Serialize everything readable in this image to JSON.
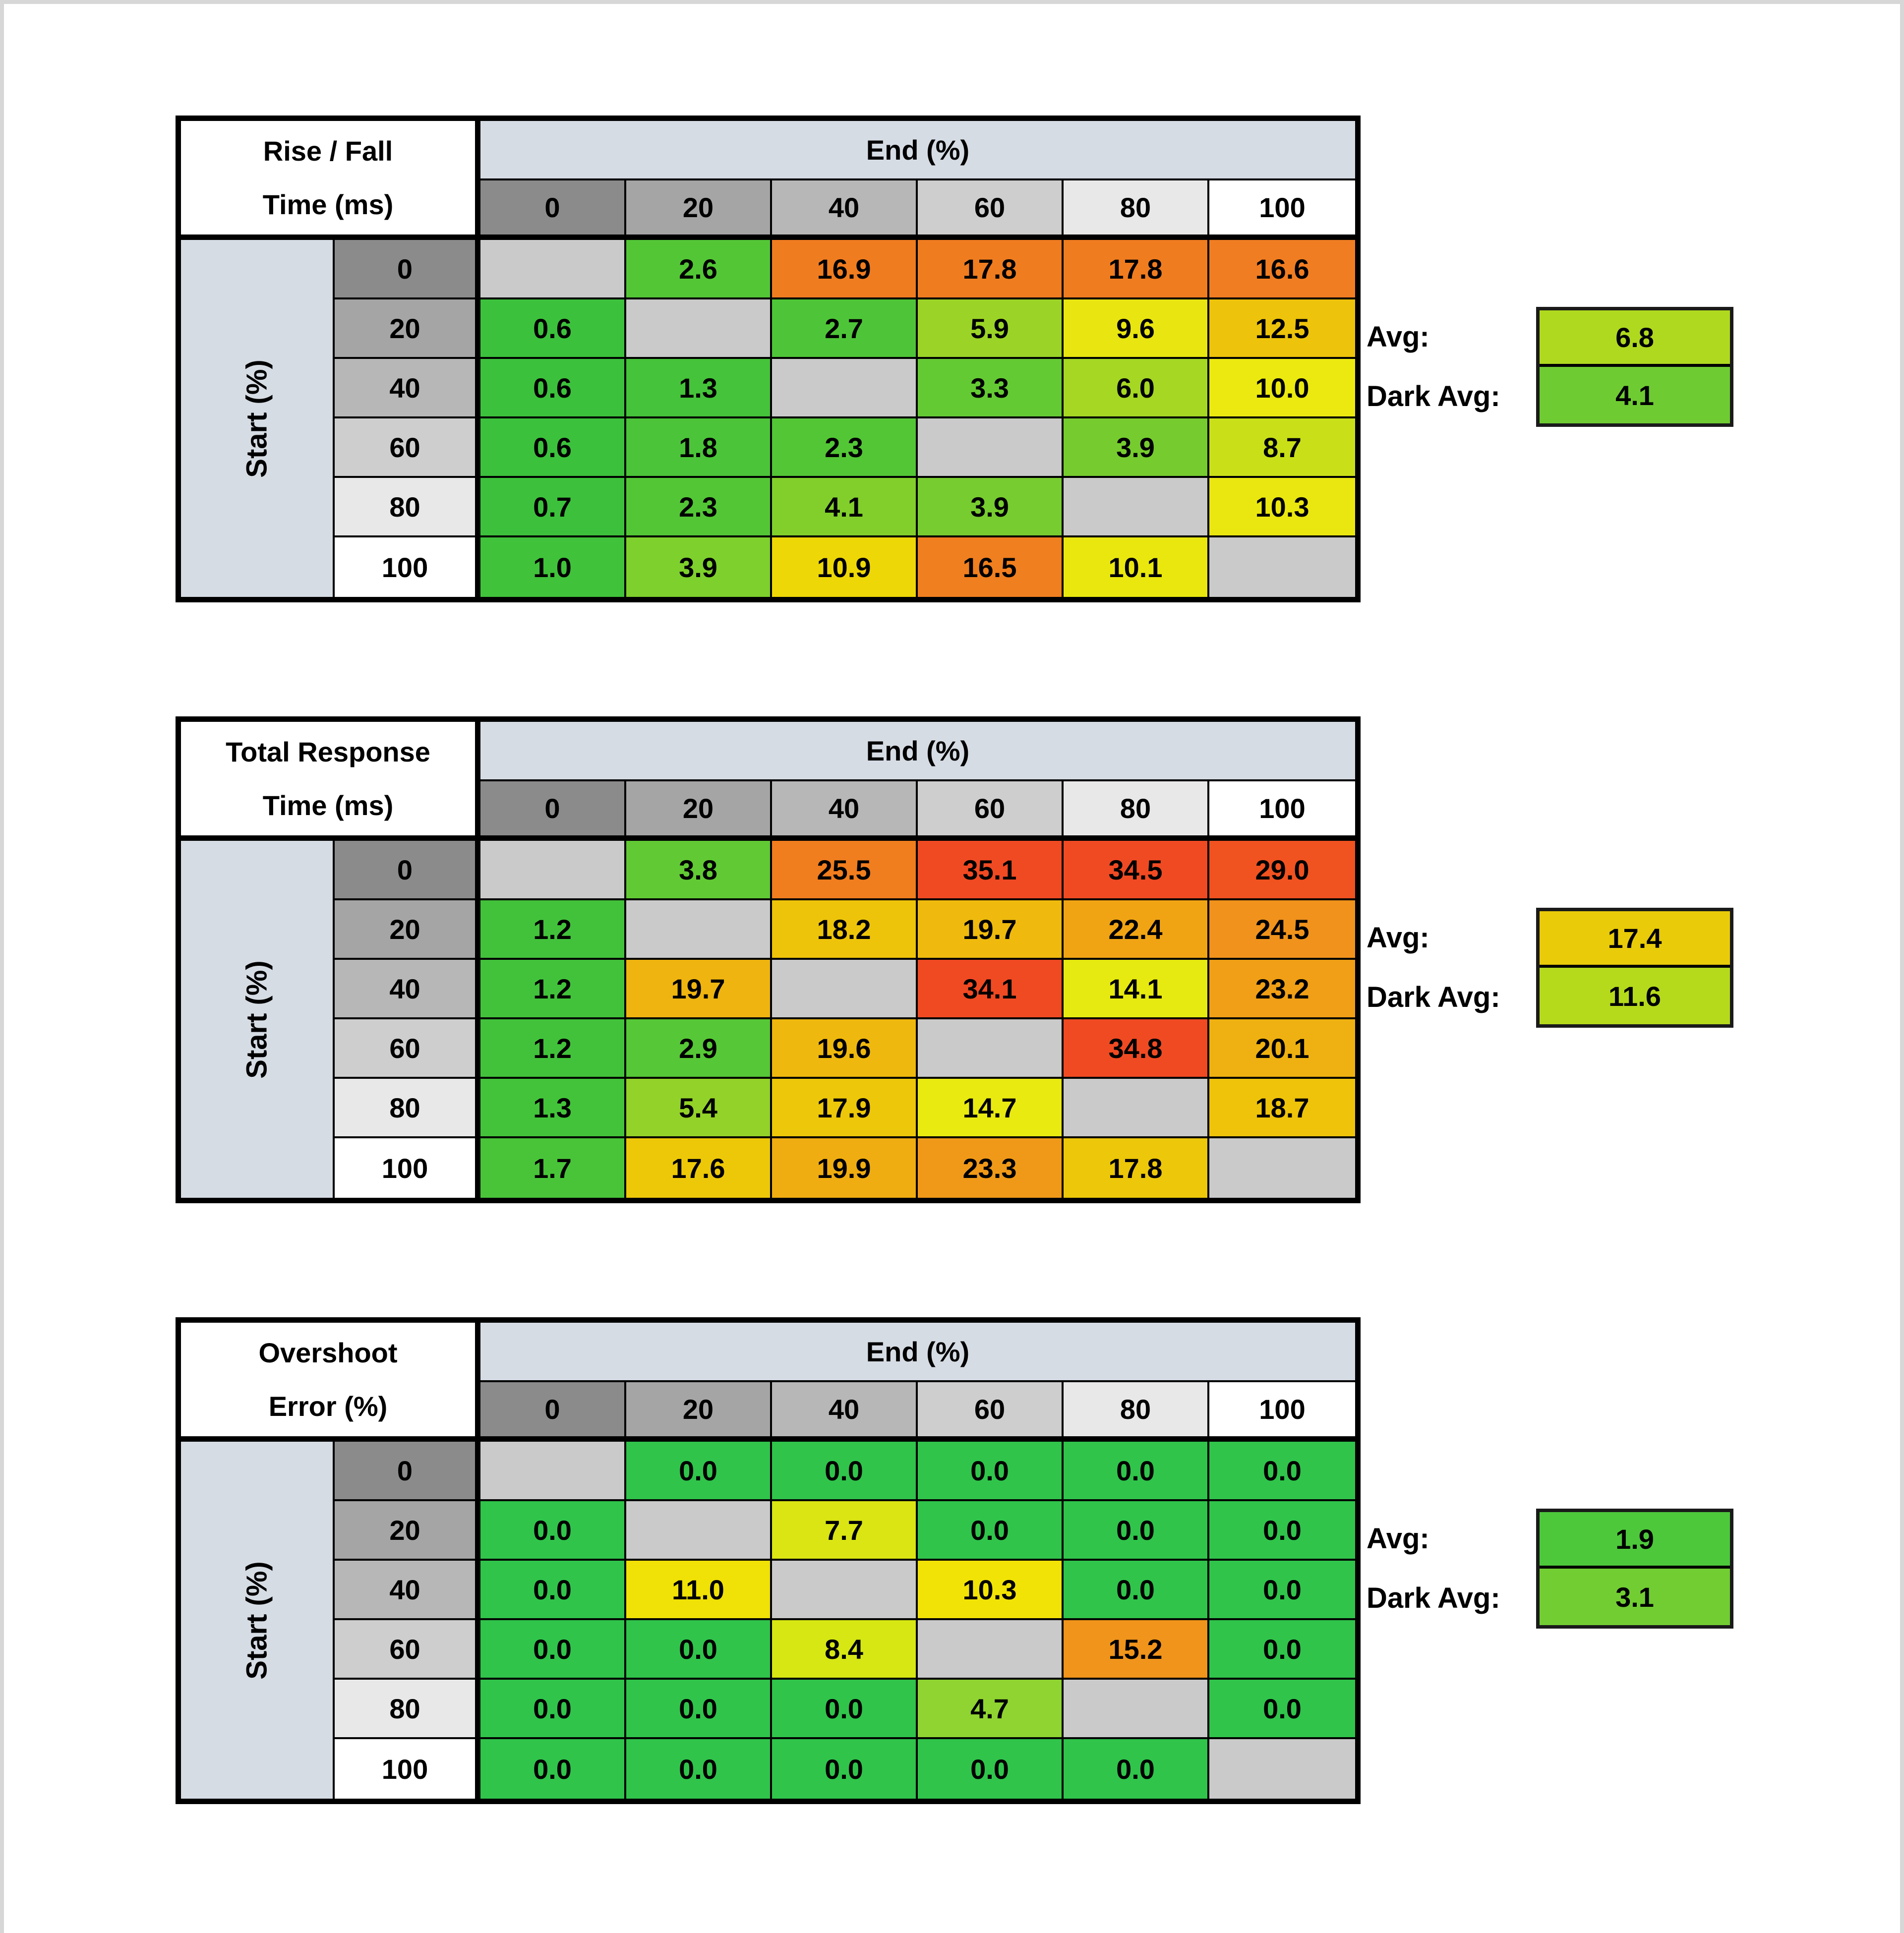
{
  "shared": {
    "end_label": "End (%)",
    "start_label": "Start (%)",
    "avg_label": "Avg:",
    "dark_avg_label": "Dark Avg:",
    "col_headers": [
      "0",
      "20",
      "40",
      "60",
      "80",
      "100"
    ],
    "row_headers": [
      "0",
      "20",
      "40",
      "60",
      "80",
      "100"
    ],
    "header_shades": [
      "#8b8b8b",
      "#a5a5a5",
      "#b7b7b7",
      "#cecece",
      "#e8e8e8",
      "#ffffff"
    ],
    "band_color": "#d6dce4",
    "diag_color": "#cacaca"
  },
  "tables": [
    {
      "title1": "Rise / Fall",
      "title2": "Time (ms)",
      "avg": "6.8",
      "avg_color": "#afd91f",
      "dark_avg": "4.1",
      "dark_avg_color": "#6fcb32",
      "cells": [
        [
          {
            "v": "",
            "c": ""
          },
          {
            "v": "2.6",
            "c": "#53c636"
          },
          {
            "v": "16.9",
            "c": "#f07c20"
          },
          {
            "v": "17.8",
            "c": "#f07c20"
          },
          {
            "v": "17.8",
            "c": "#f07c20"
          },
          {
            "v": "16.6",
            "c": "#f07d22"
          }
        ],
        [
          {
            "v": "0.6",
            "c": "#3cc13c"
          },
          {
            "v": "",
            "c": ""
          },
          {
            "v": "2.7",
            "c": "#4ec538"
          },
          {
            "v": "5.9",
            "c": "#9bd427"
          },
          {
            "v": "9.6",
            "c": "#e9e511"
          },
          {
            "v": "12.5",
            "c": "#edc30b"
          }
        ],
        [
          {
            "v": "0.6",
            "c": "#3cc13c"
          },
          {
            "v": "1.3",
            "c": "#45c33a"
          },
          {
            "v": "",
            "c": ""
          },
          {
            "v": "3.3",
            "c": "#64ca33"
          },
          {
            "v": "6.0",
            "c": "#a5d723"
          },
          {
            "v": "10.0",
            "c": "#ebe90f"
          }
        ],
        [
          {
            "v": "0.6",
            "c": "#3cc13c"
          },
          {
            "v": "1.8",
            "c": "#4bc439"
          },
          {
            "v": "2.3",
            "c": "#53c636"
          },
          {
            "v": "",
            "c": ""
          },
          {
            "v": "3.9",
            "c": "#76cc2f"
          },
          {
            "v": "8.7",
            "c": "#c9e018"
          }
        ],
        [
          {
            "v": "0.7",
            "c": "#3dc13c"
          },
          {
            "v": "2.3",
            "c": "#53c636"
          },
          {
            "v": "4.1",
            "c": "#82cf2c"
          },
          {
            "v": "3.9",
            "c": "#77cc2f"
          },
          {
            "v": "",
            "c": ""
          },
          {
            "v": "10.3",
            "c": "#eae710"
          }
        ],
        [
          {
            "v": "1.0",
            "c": "#40c23b"
          },
          {
            "v": "3.9",
            "c": "#7ed02c"
          },
          {
            "v": "10.9",
            "c": "#eed707"
          },
          {
            "v": "16.5",
            "c": "#f07f1f"
          },
          {
            "v": "10.1",
            "c": "#eae70f"
          },
          {
            "v": "",
            "c": ""
          }
        ]
      ]
    },
    {
      "title1": "Total Response",
      "title2": "Time (ms)",
      "avg": "17.4",
      "avg_color": "#e9cb09",
      "dark_avg": "11.6",
      "dark_avg_color": "#b5da1b",
      "cells": [
        [
          {
            "v": "",
            "c": ""
          },
          {
            "v": "3.8",
            "c": "#61c934"
          },
          {
            "v": "25.5",
            "c": "#f07d1e"
          },
          {
            "v": "35.1",
            "c": "#f04a23"
          },
          {
            "v": "34.5",
            "c": "#f04a23"
          },
          {
            "v": "29.0",
            "c": "#f05220"
          }
        ],
        [
          {
            "v": "1.2",
            "c": "#42c23b"
          },
          {
            "v": "",
            "c": ""
          },
          {
            "v": "18.2",
            "c": "#edc40a"
          },
          {
            "v": "19.7",
            "c": "#efba0d"
          },
          {
            "v": "22.4",
            "c": "#f0a414"
          },
          {
            "v": "24.5",
            "c": "#f0921b"
          }
        ],
        [
          {
            "v": "1.2",
            "c": "#42c23b"
          },
          {
            "v": "19.7",
            "c": "#efb40f"
          },
          {
            "v": "",
            "c": ""
          },
          {
            "v": "34.1",
            "c": "#f04a23"
          },
          {
            "v": "14.1",
            "c": "#e6ea10"
          },
          {
            "v": "23.2",
            "c": "#f09f16"
          }
        ],
        [
          {
            "v": "1.2",
            "c": "#42c23b"
          },
          {
            "v": "2.9",
            "c": "#56c736"
          },
          {
            "v": "19.6",
            "c": "#efb80e"
          },
          {
            "v": "",
            "c": ""
          },
          {
            "v": "34.8",
            "c": "#f04a23"
          },
          {
            "v": "20.1",
            "c": "#efb111"
          }
        ],
        [
          {
            "v": "1.3",
            "c": "#43c33a"
          },
          {
            "v": "5.4",
            "c": "#93d228"
          },
          {
            "v": "17.9",
            "c": "#edc709"
          },
          {
            "v": "14.7",
            "c": "#e9ea10"
          },
          {
            "v": "",
            "c": ""
          },
          {
            "v": "18.7",
            "c": "#eec30a"
          }
        ],
        [
          {
            "v": "1.7",
            "c": "#49c439"
          },
          {
            "v": "17.6",
            "c": "#edc808"
          },
          {
            "v": "19.9",
            "c": "#f0ad11"
          },
          {
            "v": "23.3",
            "c": "#f09918"
          },
          {
            "v": "17.8",
            "c": "#edc709"
          },
          {
            "v": "",
            "c": ""
          }
        ]
      ]
    },
    {
      "title1": "Overshoot",
      "title2": "Error (%)",
      "avg": "1.9",
      "avg_color": "#4dc83b",
      "dark_avg": "3.1",
      "dark_avg_color": "#72cd33",
      "cells": [
        [
          {
            "v": "",
            "c": ""
          },
          {
            "v": "0.0",
            "c": "#30c44b"
          },
          {
            "v": "0.0",
            "c": "#30c44b"
          },
          {
            "v": "0.0",
            "c": "#30c44b"
          },
          {
            "v": "0.0",
            "c": "#30c44b"
          },
          {
            "v": "0.0",
            "c": "#30c44b"
          }
        ],
        [
          {
            "v": "0.0",
            "c": "#30c44b"
          },
          {
            "v": "",
            "c": ""
          },
          {
            "v": "7.7",
            "c": "#dae513"
          },
          {
            "v": "0.0",
            "c": "#30c44b"
          },
          {
            "v": "0.0",
            "c": "#30c44b"
          },
          {
            "v": "0.0",
            "c": "#30c44b"
          }
        ],
        [
          {
            "v": "0.0",
            "c": "#30c44b"
          },
          {
            "v": "11.0",
            "c": "#f0e106"
          },
          {
            "v": "",
            "c": ""
          },
          {
            "v": "10.3",
            "c": "#f2e306"
          },
          {
            "v": "0.0",
            "c": "#30c44b"
          },
          {
            "v": "0.0",
            "c": "#30c44b"
          }
        ],
        [
          {
            "v": "0.0",
            "c": "#30c44b"
          },
          {
            "v": "0.0",
            "c": "#30c44b"
          },
          {
            "v": "8.4",
            "c": "#d6e713"
          },
          {
            "v": "",
            "c": ""
          },
          {
            "v": "15.2",
            "c": "#f0941b"
          },
          {
            "v": "0.0",
            "c": "#30c44b"
          }
        ],
        [
          {
            "v": "0.0",
            "c": "#30c44b"
          },
          {
            "v": "0.0",
            "c": "#30c44b"
          },
          {
            "v": "0.0",
            "c": "#30c44b"
          },
          {
            "v": "4.7",
            "c": "#8fd430"
          },
          {
            "v": "",
            "c": ""
          },
          {
            "v": "0.0",
            "c": "#30c44b"
          }
        ],
        [
          {
            "v": "0.0",
            "c": "#30c44b"
          },
          {
            "v": "0.0",
            "c": "#30c44b"
          },
          {
            "v": "0.0",
            "c": "#30c44b"
          },
          {
            "v": "0.0",
            "c": "#30c44b"
          },
          {
            "v": "0.0",
            "c": "#30c44b"
          },
          {
            "v": "",
            "c": ""
          }
        ]
      ]
    }
  ],
  "chart_data": [
    {
      "type": "heatmap",
      "title": "Rise / Fall Time (ms)",
      "xlabel": "End (%)",
      "ylabel": "Start (%)",
      "x": [
        0,
        20,
        40,
        60,
        80,
        100
      ],
      "y": [
        0,
        20,
        40,
        60,
        80,
        100
      ],
      "values": [
        [
          null,
          2.6,
          16.9,
          17.8,
          17.8,
          16.6
        ],
        [
          0.6,
          null,
          2.7,
          5.9,
          9.6,
          12.5
        ],
        [
          0.6,
          1.3,
          null,
          3.3,
          6.0,
          10.0
        ],
        [
          0.6,
          1.8,
          2.3,
          null,
          3.9,
          8.7
        ],
        [
          0.7,
          2.3,
          4.1,
          3.9,
          null,
          10.3
        ],
        [
          1.0,
          3.9,
          10.9,
          16.5,
          10.1,
          null
        ]
      ],
      "avg": 6.8,
      "dark_avg": 4.1
    },
    {
      "type": "heatmap",
      "title": "Total Response Time (ms)",
      "xlabel": "End (%)",
      "ylabel": "Start (%)",
      "x": [
        0,
        20,
        40,
        60,
        80,
        100
      ],
      "y": [
        0,
        20,
        40,
        60,
        80,
        100
      ],
      "values": [
        [
          null,
          3.8,
          25.5,
          35.1,
          34.5,
          29.0
        ],
        [
          1.2,
          null,
          18.2,
          19.7,
          22.4,
          24.5
        ],
        [
          1.2,
          19.7,
          null,
          34.1,
          14.1,
          23.2
        ],
        [
          1.2,
          2.9,
          19.6,
          null,
          34.8,
          20.1
        ],
        [
          1.3,
          5.4,
          17.9,
          14.7,
          null,
          18.7
        ],
        [
          1.7,
          17.6,
          19.9,
          23.3,
          17.8,
          null
        ]
      ],
      "avg": 17.4,
      "dark_avg": 11.6
    },
    {
      "type": "heatmap",
      "title": "Overshoot Error (%)",
      "xlabel": "End (%)",
      "ylabel": "Start (%)",
      "x": [
        0,
        20,
        40,
        60,
        80,
        100
      ],
      "y": [
        0,
        20,
        40,
        60,
        80,
        100
      ],
      "values": [
        [
          null,
          0.0,
          0.0,
          0.0,
          0.0,
          0.0
        ],
        [
          0.0,
          null,
          7.7,
          0.0,
          0.0,
          0.0
        ],
        [
          0.0,
          11.0,
          null,
          10.3,
          0.0,
          0.0
        ],
        [
          0.0,
          0.0,
          8.4,
          null,
          15.2,
          0.0
        ],
        [
          0.0,
          0.0,
          0.0,
          4.7,
          null,
          0.0
        ],
        [
          0.0,
          0.0,
          0.0,
          0.0,
          0.0,
          null
        ]
      ],
      "avg": 1.9,
      "dark_avg": 3.1
    }
  ]
}
